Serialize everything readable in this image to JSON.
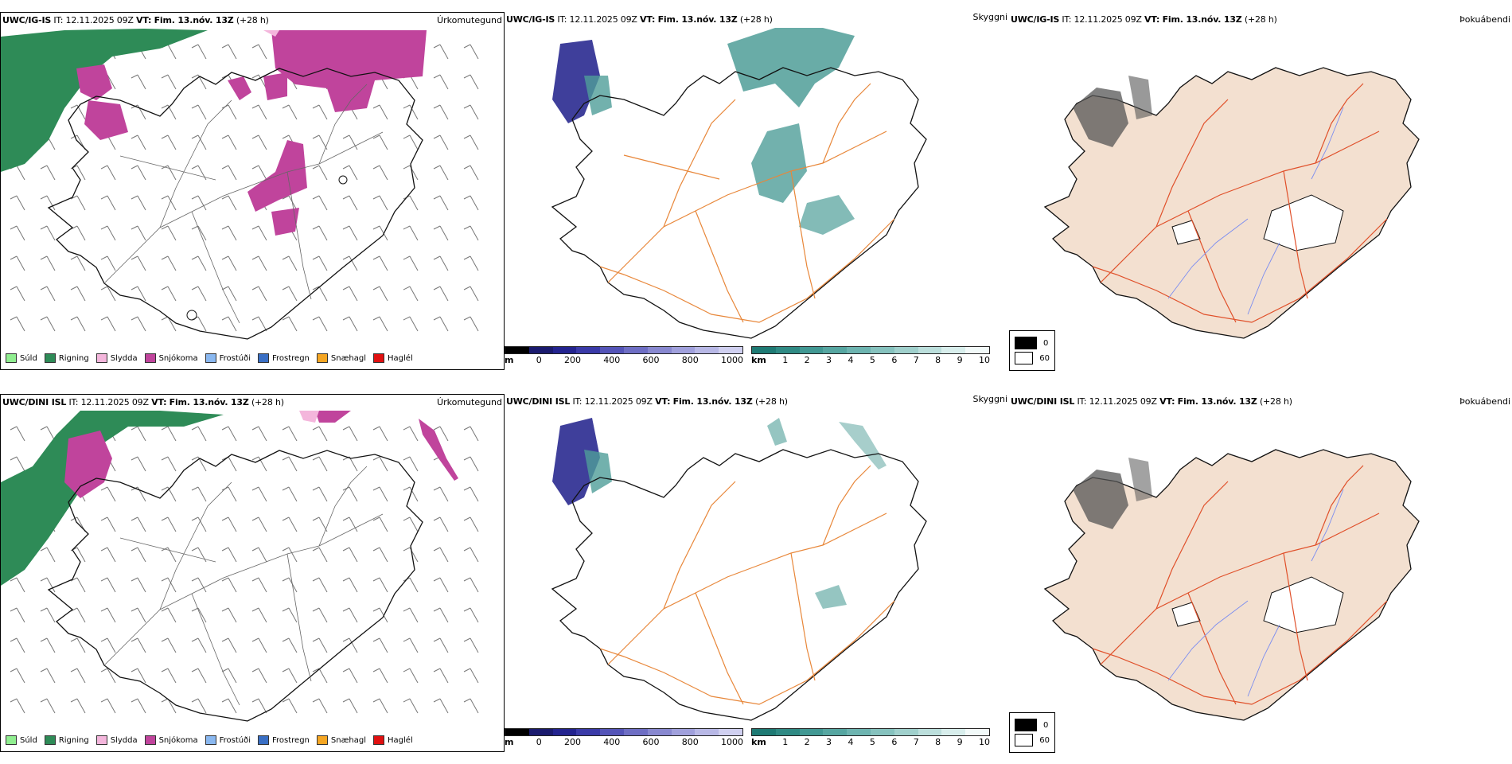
{
  "panels": {
    "precip": {
      "right_label": "Úrkomutegund"
    },
    "visibility": {
      "right_label": "Skyggni"
    },
    "fog": {
      "right_label": "Þokuábendi"
    }
  },
  "rows": [
    {
      "model": "UWC/IG-IS",
      "it_label": "IT:",
      "it_value": "12.11.2025 09Z",
      "vt_label": "VT:",
      "vt_value": "Fim. 13.nóv. 13Z",
      "lead": "(+28 h)"
    },
    {
      "model": "UWC/DINI ISL",
      "it_label": "IT:",
      "it_value": "12.11.2025 09Z",
      "vt_label": "VT:",
      "vt_value": "Fim. 13.nóv. 13Z",
      "lead": "(+28 h)"
    }
  ],
  "precip_legend": [
    {
      "label": "Súld",
      "color": "#90ee90"
    },
    {
      "label": "Rigning",
      "color": "#2e8b57"
    },
    {
      "label": "Slydda",
      "color": "#f4b6dc"
    },
    {
      "label": "Snjókoma",
      "color": "#c0449c"
    },
    {
      "label": "Frostúði",
      "color": "#8ab8f0"
    },
    {
      "label": "Frostregn",
      "color": "#3a6fc4"
    },
    {
      "label": "Snæhagl",
      "color": "#f5a623"
    },
    {
      "label": "Haglél",
      "color": "#e01010"
    }
  ],
  "height_colorbar": {
    "unit": "m",
    "ticks": [
      "0",
      "200",
      "400",
      "600",
      "800",
      "1000"
    ],
    "colors": [
      "#000000",
      "#1a1a6e",
      "#23238f",
      "#3a3aa8",
      "#5454b8",
      "#6e6ec4",
      "#8888d0",
      "#a0a0dc",
      "#b8b8e6",
      "#d0d0f0"
    ]
  },
  "vis_colorbar": {
    "unit": "km",
    "ticks": [
      "1",
      "2",
      "3",
      "4",
      "5",
      "6",
      "7",
      "8",
      "9",
      "10"
    ],
    "colors": [
      "#1e7a74",
      "#2f8a84",
      "#419893",
      "#56a6a1",
      "#6db4b0",
      "#86c2be",
      "#a0d0cc",
      "#bcdfdc",
      "#d8eeec",
      "#f2faf9"
    ]
  },
  "fog_legend": [
    {
      "label": "0",
      "color": "#000000"
    },
    {
      "label": "60",
      "color": "#ffffff"
    }
  ],
  "colors": {
    "rain": "#2e8b57",
    "snow": "#c0449c",
    "sleet": "#f4b6dc",
    "roads_orange": "#e8873a",
    "roads_red": "#e0502a",
    "land_beige": "#f3e0d0",
    "vis_teal": "#4f9e98",
    "rivers": "#7a8cf0"
  }
}
